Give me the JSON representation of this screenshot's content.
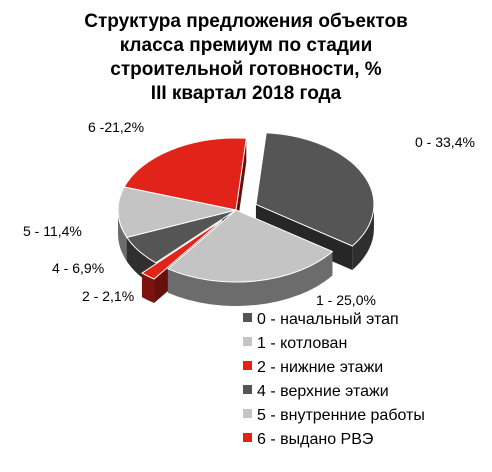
{
  "chart_data": {
    "type": "pie",
    "title_lines": [
      "Структура предложения объектов",
      "класса премиум по стадии",
      "строительной готовности, %",
      "III квартал 2018 года"
    ],
    "slices": [
      {
        "name": "0 - начальный этап",
        "value": 33.4,
        "label": "0 - 33,4%",
        "color": "#555555",
        "exploded": true
      },
      {
        "name": "1 - котлован",
        "value": 25.0,
        "label": "1 - 25,0%",
        "color": "#c4c4c4",
        "exploded": false
      },
      {
        "name": "2 - нижние этажи",
        "value": 2.1,
        "label": "2 - 2,1%",
        "color": "#e2231a",
        "exploded": true
      },
      {
        "name": "4 - верхние этажи",
        "value": 6.9,
        "label": "4 - 6,9%",
        "color": "#555555",
        "exploded": false
      },
      {
        "name": "5 - внутренние работы",
        "value": 11.4,
        "label": "5 - 11,4%",
        "color": "#c4c4c4",
        "exploded": false
      },
      {
        "name": "6 - выдано РВЭ",
        "value": 21.2,
        "label": "6 -21,2%",
        "color": "#e2231a",
        "exploded": false
      }
    ],
    "legend_position": "bottom-right"
  }
}
